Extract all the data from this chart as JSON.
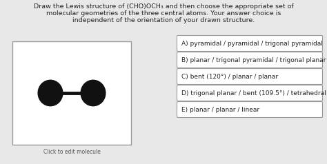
{
  "title_line1": "Draw the Lewis structure of (CHO)OCH₃ and then choose the appropriate set of",
  "title_line2": "molecular geometries of the three central atoms. Your answer choice is",
  "title_line3": "independent of the orientation of your drawn structure.",
  "click_label": "Click to edit molecule",
  "options": [
    "A) pyramidal / pyramidal / trigonal pyramidal",
    "B) planar / trigonal pyramidal / trigonal planar",
    "C) bent (120°) / planar / planar",
    "D) trigonal planar / bent (109.5°) / tetrahedral",
    "E) planar / planar / linear"
  ],
  "bg_color": "#e8e8e8",
  "box_bg": "#ffffff",
  "box_border": "#999999",
  "circle_color": "#111111",
  "line_color": "#111111",
  "text_color": "#222222",
  "option_text_color": "#222222",
  "title_fontsize": 6.8,
  "option_fontsize": 6.5,
  "click_fontsize": 5.5
}
